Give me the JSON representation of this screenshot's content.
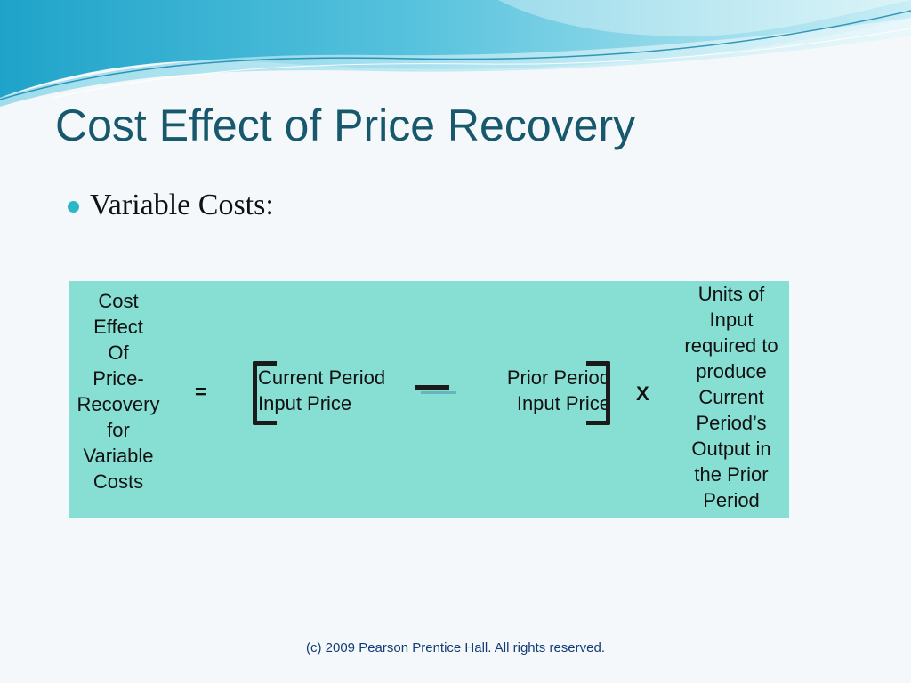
{
  "slide": {
    "title": "Cost Effect of Price Recovery",
    "bullet": "Variable Costs:",
    "formula": {
      "left_lines": [
        "Cost",
        "Effect",
        "Of",
        "Price-",
        "Recovery",
        "for",
        "Variable",
        "Costs"
      ],
      "equals": "=",
      "current_lines": [
        "Current Period",
        "Input Price"
      ],
      "prior_lines": [
        "Prior Period",
        "Input Price"
      ],
      "times": "X",
      "right_lines": [
        "Units of",
        "Input",
        "required to",
        "produce",
        "Current",
        "Period’s",
        "Output in",
        "the Prior",
        "Period"
      ]
    },
    "footer": "(c) 2009 Pearson Prentice Hall. All rights reserved."
  },
  "colors": {
    "title": "#17586c",
    "accent": "#2bb7c5",
    "formula_background": "#86dfd2",
    "footer": "#123d78"
  }
}
